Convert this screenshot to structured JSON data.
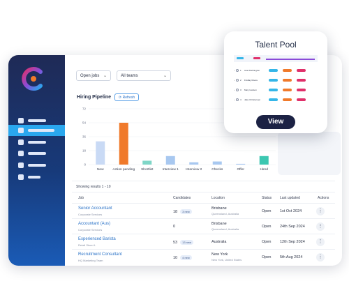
{
  "filters": {
    "jobs_select": "Open jobs",
    "teams_select": "All teams"
  },
  "pipeline": {
    "title": "Hiring Pipeline",
    "refresh_label": "⟳ Refresh"
  },
  "chart_data": {
    "type": "bar",
    "categories": [
      "New",
      "Action pending",
      "Shortlist",
      "Interview 1",
      "Interview 2",
      "Checks",
      "Offer",
      "Hired"
    ],
    "values": [
      30,
      54,
      5,
      11,
      3,
      4,
      1,
      11
    ],
    "yticks": [
      0,
      18,
      36,
      54,
      72
    ],
    "ylim": [
      0,
      72
    ],
    "colors": [
      "#c9daf5",
      "#f07a2b",
      "#7fd6c7",
      "#a8c8f0",
      "#a8c8f0",
      "#a8c8f0",
      "#a8c8f0",
      "#3cc7b1"
    ]
  },
  "results_text": "Showing results 1 - 10",
  "table": {
    "headers": {
      "job": "Job",
      "candidates": "Candidates",
      "location": "Location",
      "status": "Status",
      "last_updated": "Last updated",
      "actions": "Actions"
    },
    "rows": [
      {
        "title": "Senior Accountant",
        "sub": "Corporate Services",
        "count": "18",
        "badge": "3 new",
        "loc": "Brisbane",
        "loc_sub": "Queensland, Australia",
        "status": "Open",
        "updated": "1st Oct 2024"
      },
      {
        "title": "Accountant (Aus)",
        "sub": "Corporate Services",
        "count": "0",
        "badge": "",
        "loc": "Brisbane",
        "loc_sub": "Queensland, Australia",
        "status": "Open",
        "updated": "24th Sep 2024"
      },
      {
        "title": "Experienced Barista",
        "sub": "Retail Store A",
        "count": "53",
        "badge": "13 new",
        "loc": "Australia",
        "loc_sub": "",
        "status": "Open",
        "updated": "12th Sep 2024"
      },
      {
        "title": "Recruitment Consultant",
        "sub": "HQ Marketing Team",
        "count": "10",
        "badge": "4 new",
        "loc": "New York",
        "loc_sub": "New York, United States",
        "status": "Open",
        "updated": "5th Aug 2024"
      }
    ],
    "action_glyph": "⋮"
  },
  "talent_pool": {
    "title": "Talent Pool",
    "view_label": "View",
    "rows": [
      {
        "num": "1",
        "name": "Ava Worthington",
        "pills": [
          "#35b6e8",
          "#f07a2b",
          "#e0306a"
        ]
      },
      {
        "num": "2",
        "name": "Findlay Moore",
        "pills": [
          "#35b6e8",
          "#f07a2b",
          "#e0306a"
        ]
      },
      {
        "num": "3",
        "name": "Mary Hudson",
        "pills": [
          "#35b6e8",
          "#f07a2b",
          "#e0306a"
        ]
      },
      {
        "num": "4",
        "name": "Jake Christensen",
        "pills": [
          "#35b6e8",
          "#f07a2b",
          "#e0306a"
        ]
      }
    ]
  },
  "colors": {
    "accent": "#2aa7ee",
    "link": "#2a72c7",
    "sidebar_top": "#1f2a56",
    "sidebar_bottom": "#1a5bb6",
    "view_button": "#1c2244"
  }
}
